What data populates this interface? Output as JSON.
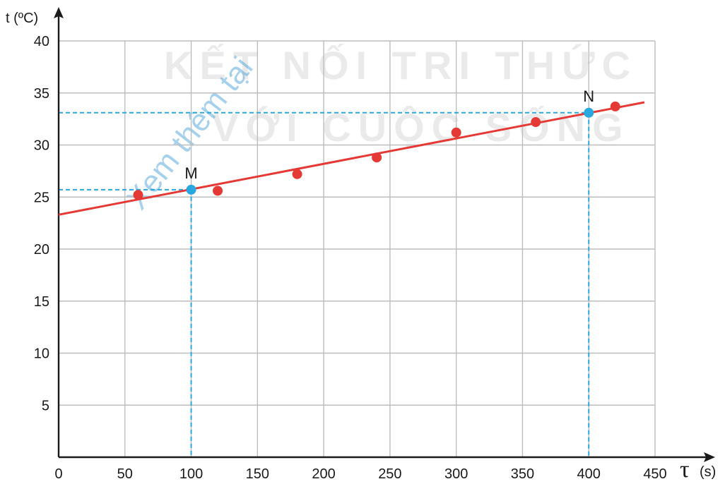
{
  "chart_data": {
    "type": "scatter",
    "xlabel_symbol": "τ",
    "xlabel_unit": "(s)",
    "ylabel": "t (ºC)",
    "xlim": [
      0,
      450
    ],
    "ylim": [
      0,
      40
    ],
    "x_ticks": [
      0,
      50,
      100,
      150,
      200,
      250,
      300,
      350,
      400,
      450
    ],
    "y_ticks": [
      5,
      10,
      15,
      20,
      25,
      30,
      35,
      40
    ],
    "grid": true,
    "series": [
      {
        "kind": "points",
        "color": "#e53935",
        "points": [
          {
            "x": 60,
            "y": 25.2
          },
          {
            "x": 120,
            "y": 25.6
          },
          {
            "x": 180,
            "y": 27.2
          },
          {
            "x": 240,
            "y": 28.8
          },
          {
            "x": 300,
            "y": 31.2
          },
          {
            "x": 360,
            "y": 32.2
          },
          {
            "x": 420,
            "y": 33.7
          }
        ]
      },
      {
        "kind": "fit-line",
        "color": "#e53935",
        "from": {
          "x": 0,
          "y": 23.3
        },
        "to": {
          "x": 442,
          "y": 34.1
        }
      }
    ],
    "highlighted_points": [
      {
        "label": "M",
        "x": 100,
        "y": 25.7,
        "color": "#29a8e0"
      },
      {
        "label": "N",
        "x": 400,
        "y": 33.1,
        "color": "#29a8e0"
      }
    ],
    "guide_color": "#29a8e0",
    "grid_color": "#bdbdbd",
    "axis_color": "#1a1a1a"
  },
  "watermark": {
    "line1": "KẾT NỐI TRI THỨC",
    "line2": "VỚI CUỘC SỐNG",
    "diagonal": "Xem thêm tại"
  }
}
